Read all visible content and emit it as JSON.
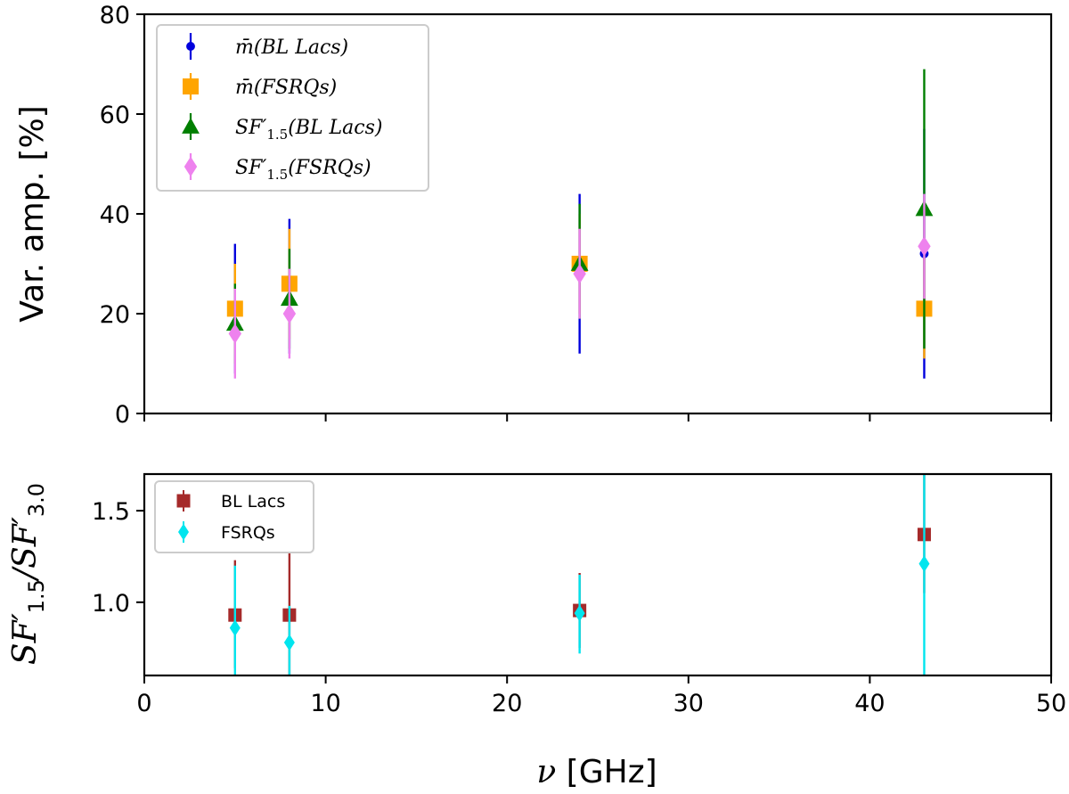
{
  "chart_data": [
    {
      "type": "scatter",
      "panel": "top",
      "xlabel": "ν [GHz]",
      "ylabel": "Var. amp. [%]",
      "xlim": [
        0,
        50
      ],
      "ylim": [
        0,
        80
      ],
      "yticks": [
        0,
        20,
        40,
        60,
        80
      ],
      "legend_position": "top-left",
      "series": [
        {
          "name": "m̄(BL Lacs)",
          "legend_label": "m̄(BL Lacs)",
          "color": "#0000dd",
          "marker": "circle",
          "points": [
            {
              "x": 5,
              "y": 21,
              "lo": 8,
              "hi": 34
            },
            {
              "x": 8,
              "y": 26,
              "lo": 12,
              "hi": 39
            },
            {
              "x": 24,
              "y": 29,
              "lo": 12,
              "hi": 44
            },
            {
              "x": 43,
              "y": 32,
              "lo": 7,
              "hi": 57
            }
          ]
        },
        {
          "name": "m̄(FSRQs)",
          "legend_label": "m̄(FSRQs)",
          "color": "#ffa500",
          "marker": "square",
          "points": [
            {
              "x": 5,
              "y": 21,
              "lo": 12,
              "hi": 30
            },
            {
              "x": 8,
              "y": 26,
              "lo": 15,
              "hi": 37
            },
            {
              "x": 24,
              "y": 30,
              "lo": 20,
              "hi": 40
            },
            {
              "x": 43,
              "y": 21,
              "lo": 11,
              "hi": 31
            }
          ]
        },
        {
          "name": "SF′1.5(BL Lacs)",
          "legend_label": "SF′",
          "legend_sub": "1.5",
          "legend_tail": "(BL Lacs)",
          "color": "#007f00",
          "marker": "triangle",
          "points": [
            {
              "x": 5,
              "y": 18,
              "lo": 10,
              "hi": 26
            },
            {
              "x": 8,
              "y": 23,
              "lo": 13,
              "hi": 33
            },
            {
              "x": 24,
              "y": 30,
              "lo": 19,
              "hi": 42
            },
            {
              "x": 43,
              "y": 41,
              "lo": 13,
              "hi": 69
            }
          ]
        },
        {
          "name": "SF′1.5(FSRQs)",
          "legend_label": "SF′",
          "legend_sub": "1.5",
          "legend_tail": "(FSRQs)",
          "color": "#ee82ee",
          "marker": "diamond",
          "points": [
            {
              "x": 5,
              "y": 16,
              "lo": 7,
              "hi": 25
            },
            {
              "x": 8,
              "y": 20,
              "lo": 11,
              "hi": 29
            },
            {
              "x": 24,
              "y": 28,
              "lo": 19,
              "hi": 37
            },
            {
              "x": 43,
              "y": 33.5,
              "lo": 23,
              "hi": 44
            }
          ]
        }
      ]
    },
    {
      "type": "scatter",
      "panel": "bottom",
      "xlabel": "ν [GHz]",
      "ylabel": "SF′1.5/SF′3.0",
      "xlim": [
        0,
        50
      ],
      "ylim": [
        0.6,
        1.7
      ],
      "xticks": [
        0,
        10,
        20,
        30,
        40,
        50
      ],
      "yticks": [
        1.0,
        1.5
      ],
      "legend_position": "top-left",
      "series": [
        {
          "name": "BL Lacs",
          "color": "#a52a2a",
          "marker": "square",
          "points": [
            {
              "x": 5,
              "y": 0.93,
              "lo": 0.64,
              "hi": 1.23
            },
            {
              "x": 8,
              "y": 0.93,
              "lo": 0.6,
              "hi": 1.27
            },
            {
              "x": 24,
              "y": 0.955,
              "lo": 0.75,
              "hi": 1.16
            },
            {
              "x": 43,
              "y": 1.37,
              "lo": 1.05,
              "hi": 1.7
            }
          ]
        },
        {
          "name": "FSRQs",
          "color": "#00e5ee",
          "marker": "diamond",
          "points": [
            {
              "x": 5,
              "y": 0.86,
              "lo": 0.6,
              "hi": 1.2
            },
            {
              "x": 8,
              "y": 0.78,
              "lo": 0.6,
              "hi": 0.98
            },
            {
              "x": 24,
              "y": 0.94,
              "lo": 0.72,
              "hi": 1.15
            },
            {
              "x": 43,
              "y": 1.21,
              "lo": 0.6,
              "hi": 1.7
            }
          ]
        }
      ]
    }
  ]
}
